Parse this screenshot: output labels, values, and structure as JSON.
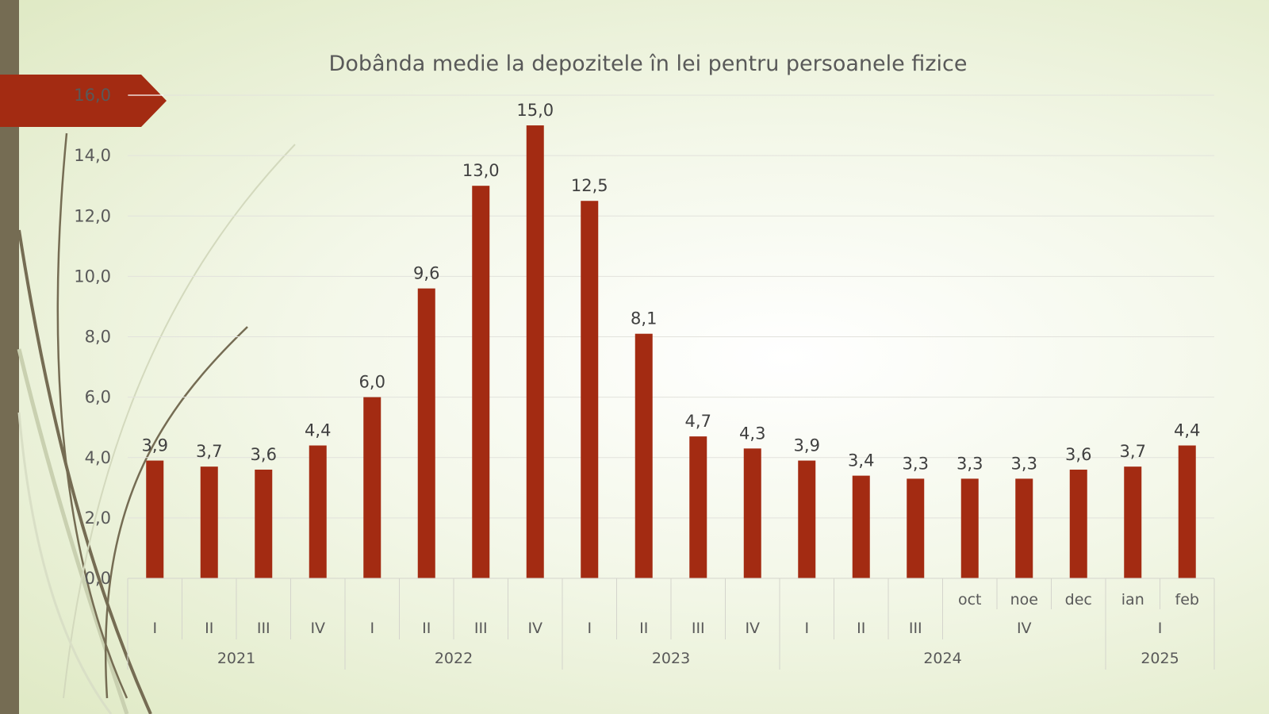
{
  "colors": {
    "bar": "#a32b12",
    "left_bar": "#756c53",
    "arrow": "#a32b12",
    "grid": "#e2e2dc"
  },
  "chart_data": {
    "type": "bar",
    "title": "Dobânda medie la depozitele în lei pentru persoanele fizice",
    "ylim": [
      0,
      16
    ],
    "yticks": [
      "0,0",
      "2,0",
      "4,0",
      "6,0",
      "8,0",
      "10,0",
      "12,0",
      "14,0",
      "16,0"
    ],
    "grid": true,
    "legend": "none",
    "categories": [
      "I",
      "II",
      "III",
      "IV",
      "I",
      "II",
      "III",
      "IV",
      "I",
      "II",
      "III",
      "IV",
      "I",
      "II",
      "III",
      "oct",
      "noe",
      "dec",
      "ian",
      "feb"
    ],
    "values": [
      3.9,
      3.7,
      3.6,
      4.4,
      6.0,
      9.6,
      13.0,
      15.0,
      12.5,
      8.1,
      4.7,
      4.3,
      3.9,
      3.4,
      3.3,
      3.3,
      3.3,
      3.6,
      3.7,
      4.4
    ],
    "data_labels": [
      "3,9",
      "3,7",
      "3,6",
      "4,4",
      "6,0",
      "9,6",
      "13,0",
      "15,0",
      "12,5",
      "8,1",
      "4,7",
      "4,3",
      "3,9",
      "3,4",
      "3,3",
      "3,3",
      "3,3",
      "3,6",
      "3,7",
      "4,4"
    ],
    "quarter_groups": [
      {
        "label": "IV",
        "start": 15,
        "count": 3
      },
      {
        "label": "I",
        "start": 18,
        "count": 2
      }
    ],
    "year_groups": [
      {
        "label": "2021",
        "start": 0,
        "count": 4
      },
      {
        "label": "2022",
        "start": 4,
        "count": 4
      },
      {
        "label": "2023",
        "start": 8,
        "count": 4
      },
      {
        "label": "2024",
        "start": 12,
        "count": 6
      },
      {
        "label": "2025",
        "start": 18,
        "count": 2
      }
    ]
  }
}
